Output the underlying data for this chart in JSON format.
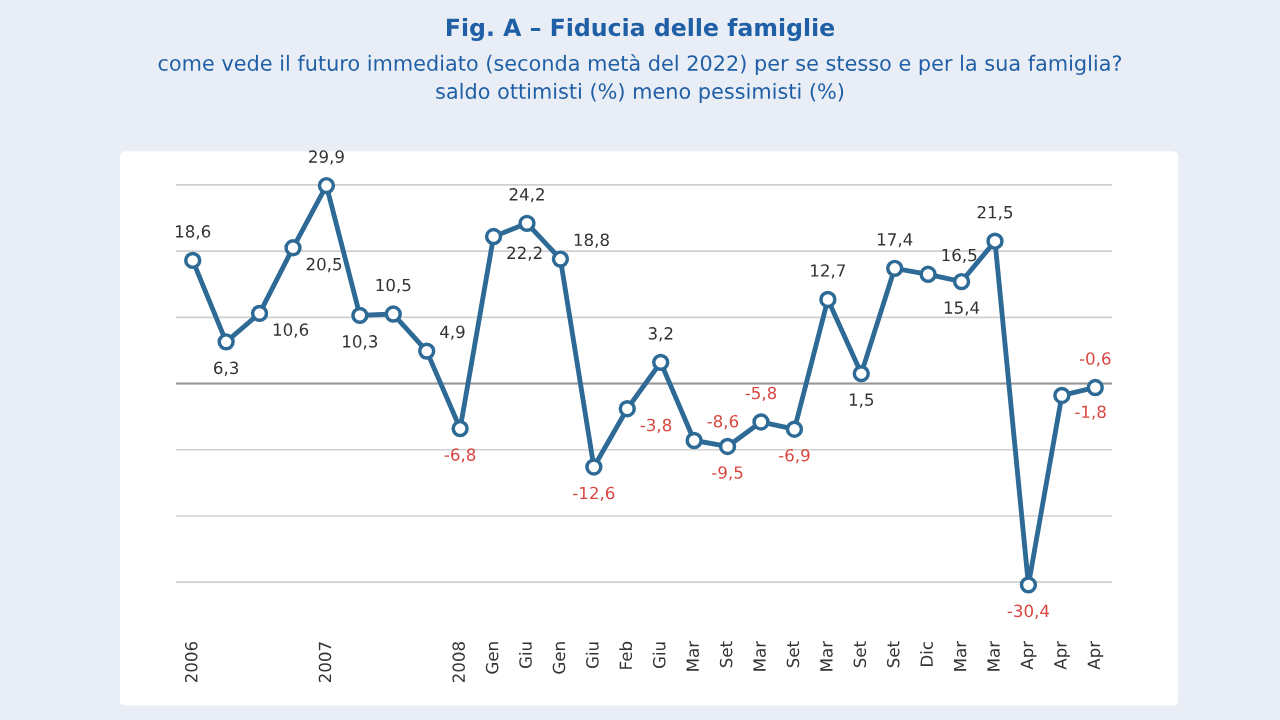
{
  "chart_data": {
    "type": "line",
    "title": "Fig. A – Fiducia delle famiglie",
    "subtitle": "come vede il futuro immediato (seconda metà del 2022) per se stesso e per la sua famiglia?\nsaldo ottimisti (%) meno pessimisti (%)",
    "categories": [
      "2006",
      null,
      null,
      null,
      "2007",
      null,
      null,
      null,
      "2008",
      "Gen",
      "Giu",
      "Gen",
      "Giu",
      "Feb",
      "Giu",
      "Mar",
      "Set",
      "Mar",
      "Set",
      "Mar",
      "Set",
      "Set",
      "Dic",
      "Mar",
      "Mar",
      "Apr",
      "Apr",
      "Apr"
    ],
    "series": [
      {
        "color": "#2e6a96",
        "values": [
          18.6,
          6.3,
          10.6,
          20.5,
          29.9,
          10.3,
          10.5,
          4.9,
          -6.8,
          22.2,
          24.2,
          18.8,
          -12.6,
          -3.8,
          3.2,
          -8.6,
          -9.5,
          -5.8,
          -6.9,
          12.7,
          1.5,
          17.4,
          16.5,
          15.4,
          21.5,
          -30.4,
          -1.8,
          -0.6
        ],
        "value_labels": [
          "18,6",
          "6,3",
          "10,6",
          "20,5",
          "29,9",
          "10,3",
          "10,5",
          "4,9",
          "-6,8",
          "22,2",
          "24,2",
          "18,8",
          "-12,6",
          "-3,8",
          "3,2",
          "-8,6",
          "-9,5",
          "-5,8",
          "-6,9",
          "12,7",
          "1,5",
          "17,4",
          "16,5",
          "15,4",
          "21,5",
          "-30,4",
          "-1,8",
          "-0,6"
        ]
      }
    ],
    "grid": "y",
    "tick_labels": "x",
    "marker": "circle",
    "line_style": "solid"
  }
}
